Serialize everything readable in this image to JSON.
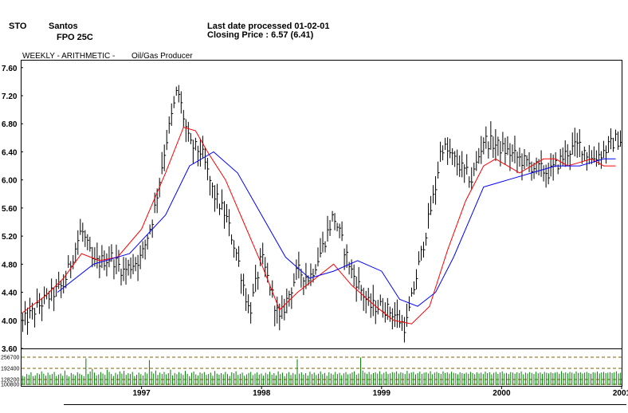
{
  "header": {
    "symbol": "STO",
    "company": "Santos",
    "security": "FPO 25C",
    "last_date": "Last date processed 01-02-01",
    "closing": "Closing Price : 6.57  (6.41)"
  },
  "subtitle": {
    "mode": "WEEKLY  -  ARITHMETIC  -",
    "sector": "Oil/Gas Producer"
  },
  "colors": {
    "bars": "#000000",
    "ma_short": "#ff0000",
    "ma_long": "#0000ff",
    "volume": "#008000",
    "volume_grid": "#806000"
  },
  "chart_data": [
    {
      "type": "line",
      "title": "",
      "xlabel": "",
      "ylabel": "",
      "x_ticks": [
        "1997",
        "1998",
        "1999",
        "2000",
        "2001"
      ],
      "y_ticks": [
        "3.60",
        "4.00",
        "4.40",
        "4.80",
        "5.20",
        "5.60",
        "6.00",
        "6.40",
        "6.80",
        "7.20",
        "7.60"
      ],
      "ylim": [
        3.6,
        7.7
      ],
      "xlim": [
        1996.0,
        2001.0
      ],
      "grid": false,
      "price_style": "weekly high-low-close bars",
      "series": [
        {
          "x": [
            1996.0,
            1996.2,
            1996.35,
            1996.5,
            1996.6,
            1996.75,
            1996.85,
            1997.0,
            1997.1,
            1997.2,
            1997.3,
            1997.4,
            1997.5,
            1997.55,
            1997.6,
            1997.7,
            1997.8,
            1997.9,
            1998.0,
            1998.15,
            1998.3,
            1998.4,
            1998.5,
            1998.6,
            1998.75,
            1998.9,
            1999.0,
            1999.1,
            1999.2,
            1999.3,
            1999.45,
            1999.5,
            1999.6,
            1999.75,
            1999.85,
            1999.95,
            2000.05,
            2000.15,
            2000.25,
            2000.4,
            2000.55,
            2000.65,
            2000.75,
            2000.85,
            2000.95
          ],
          "values": [
            3.95,
            4.3,
            4.5,
            5.3,
            4.8,
            4.9,
            4.7,
            4.9,
            5.5,
            6.5,
            7.3,
            6.5,
            6.4,
            6.1,
            5.8,
            5.5,
            4.9,
            4.1,
            4.9,
            4.0,
            4.7,
            4.6,
            5.0,
            5.5,
            4.7,
            4.2,
            4.2,
            4.1,
            3.9,
            4.7,
            5.9,
            6.5,
            6.3,
            6.0,
            6.57,
            6.5,
            6.4,
            6.3,
            6.2,
            6.1,
            6.4,
            6.5,
            6.3,
            6.4,
            6.57
          ]
        },
        {
          "x": [
            1996.0,
            1996.2,
            1996.35,
            1996.5,
            1996.65,
            1996.8,
            1997.0,
            1997.2,
            1997.35,
            1997.45,
            1997.55,
            1997.7,
            1997.85,
            1998.0,
            1998.15,
            1998.3,
            1998.45,
            1998.6,
            1998.75,
            1998.95,
            1999.1,
            1999.25,
            1999.4,
            1999.55,
            1999.7,
            1999.85,
            1999.95,
            2000.05,
            2000.15,
            2000.25,
            2000.35,
            2000.45,
            2000.55,
            2000.65,
            2000.75,
            2000.85,
            2000.95
          ],
          "values": [
            4.1,
            4.35,
            4.6,
            4.95,
            4.85,
            4.9,
            5.3,
            6.1,
            6.75,
            6.7,
            6.4,
            6.0,
            5.4,
            4.8,
            4.15,
            4.4,
            4.6,
            4.8,
            4.5,
            4.2,
            4.0,
            3.95,
            4.2,
            5.0,
            5.7,
            6.2,
            6.3,
            6.2,
            6.1,
            6.2,
            6.3,
            6.3,
            6.2,
            6.25,
            6.3,
            6.2,
            6.2
          ]
        },
        {
          "x": [
            1996.3,
            1996.6,
            1996.9,
            1997.2,
            1997.4,
            1997.6,
            1997.8,
            1998.0,
            1998.2,
            1998.4,
            1998.6,
            1998.8,
            1999.0,
            1999.15,
            1999.3,
            1999.45,
            1999.6,
            1999.75,
            1999.85,
            1999.95,
            2000.05,
            2000.15,
            2000.25,
            2000.35,
            2000.45,
            2000.55,
            2000.65,
            2000.75,
            2000.85,
            2000.95
          ],
          "values": [
            4.4,
            4.8,
            4.95,
            5.5,
            6.2,
            6.4,
            6.1,
            5.5,
            4.9,
            4.6,
            4.7,
            4.85,
            4.7,
            4.3,
            4.2,
            4.4,
            4.9,
            5.5,
            5.9,
            5.95,
            6.0,
            6.05,
            6.1,
            6.15,
            6.2,
            6.2,
            6.2,
            6.25,
            6.3,
            6.3
          ]
        }
      ]
    },
    {
      "type": "bar",
      "title": "",
      "y_ticks": [
        "256700",
        "192400",
        "128200",
        "100800"
      ],
      "ylim": [
        100800,
        256700
      ],
      "volume_x_range": [
        1996.0,
        2001.0
      ],
      "values": [
        150000,
        145000,
        160000,
        155000,
        170000,
        148000,
        152000,
        165000,
        158000,
        175000,
        162000,
        150000,
        168000,
        155000,
        160000,
        172000,
        149000,
        157000,
        163000,
        150000,
        180000,
        154000,
        146000,
        166000,
        159000,
        151000,
        170000,
        162000,
        155000,
        148000,
        250000,
        160000,
        175000,
        190000,
        168000,
        152000,
        158000,
        171000,
        163000,
        155000,
        185000,
        172000,
        160000,
        149000,
        167000,
        158000,
        175000,
        162000,
        178000,
        155000,
        165000,
        160000,
        172000,
        148000,
        156000,
        168000,
        159000,
        151000,
        170000,
        162000,
        240000,
        175000,
        163000,
        180000,
        155000,
        168000,
        160000,
        172000,
        158000,
        165000,
        185000,
        152000,
        166000,
        159000,
        171000,
        163000,
        155000,
        178000,
        161000,
        148000,
        167000,
        174000,
        158000,
        152000,
        169000,
        163000,
        171000,
        155000,
        160000,
        168000,
        150000,
        177000,
        162000,
        156000,
        165000,
        158000,
        172000,
        160000,
        149000,
        170000,
        164000,
        176000,
        155000,
        161000,
        168000,
        150000,
        158000,
        166000,
        172000,
        154000,
        162000,
        170000,
        157000,
        163000,
        151000,
        167000,
        159000,
        173000,
        156000,
        165000,
        152000,
        175000,
        160000,
        168000,
        148000,
        163000,
        171000,
        155000,
        166000,
        158000,
        245000,
        162000,
        170000,
        157000,
        165000,
        151000,
        173000,
        160000,
        168000,
        154000,
        162000,
        175000,
        159000,
        166000,
        150000,
        170000,
        163000,
        157000,
        172000,
        160000,
        167000,
        153000,
        164000,
        171000,
        158000,
        162000,
        169000,
        175000,
        156000,
        163000,
        255000,
        180000,
        168000,
        161000,
        172000,
        158000,
        165000,
        170000,
        162000,
        176000,
        159000,
        167000,
        173000,
        160000,
        164000,
        171000,
        168000,
        175000,
        162000,
        170000,
        166000,
        160000,
        178000,
        163000,
        169000,
        172000,
        158000,
        165000,
        174000,
        161000,
        167000,
        170000,
        163000,
        176000,
        159000,
        168000,
        172000,
        165000,
        160000,
        175000,
        166000,
        170000,
        162000,
        173000,
        167000,
        164000,
        158000,
        170000,
        165000,
        162000,
        168000,
        161000,
        172000,
        166000,
        159000,
        170000,
        163000,
        168000,
        160000,
        174000,
        165000,
        170000,
        158000,
        167000,
        172000,
        161000,
        169000,
        175000,
        163000,
        166000,
        160000,
        171000,
        168000,
        162000,
        170000,
        165000,
        175000,
        158000,
        168000,
        163000,
        171000,
        166000,
        160000,
        173000,
        164000,
        169000,
        161000,
        172000,
        167000,
        163000,
        170000,
        165000,
        168000,
        171000,
        162000,
        176000,
        166000,
        170000,
        164000,
        172000,
        168000,
        162000,
        175000,
        166000,
        170000,
        163000,
        168000,
        172000,
        165000,
        161000,
        170000,
        167000,
        174000,
        163000,
        169000,
        172000,
        165000,
        168000,
        171000,
        166000,
        170000,
        175000,
        163000,
        168000
      ]
    }
  ]
}
